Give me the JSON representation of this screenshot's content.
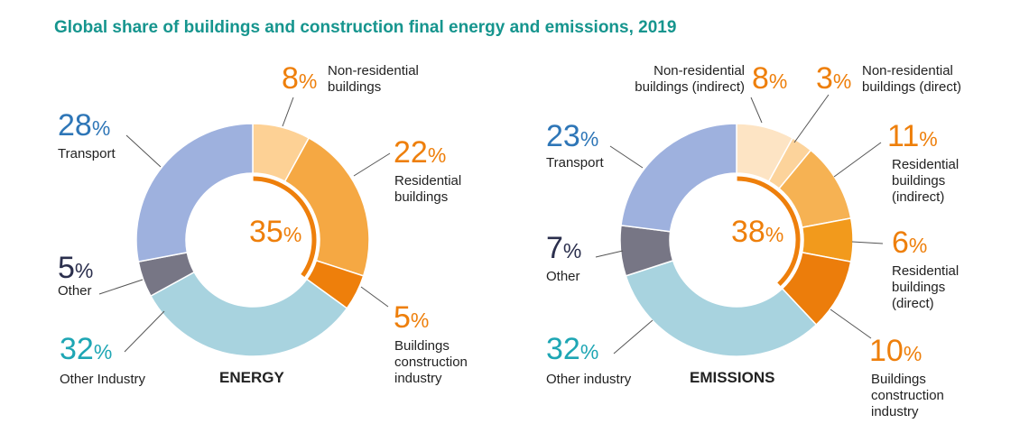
{
  "title": "Global share of buildings and construction final energy and emissions, 2019",
  "chart_data": [
    {
      "type": "pie",
      "name": "ENERGY",
      "center_value": "35",
      "center_unit": "%",
      "slices": [
        {
          "label": "Non-residential buildings",
          "value": 8,
          "color": "#fdd195"
        },
        {
          "label": "Residential buildings",
          "value": 22,
          "color": "#f5a843"
        },
        {
          "label": "Buildings construction industry",
          "value": 5,
          "color": "#ee7f0b"
        },
        {
          "label": "Other Industry",
          "value": 32,
          "color": "#a8d3df"
        },
        {
          "label": "Other",
          "value": 5,
          "color": "#777685"
        },
        {
          "label": "Transport",
          "value": 28,
          "color": "#9eb1de"
        }
      ],
      "labels": {
        "nonres": {
          "num": "8",
          "text1": "Non-residential",
          "text2": "buildings"
        },
        "res": {
          "num": "22",
          "text1": "Residential",
          "text2": "buildings"
        },
        "constr": {
          "num": "5",
          "text1": "Buildings",
          "text2": "construction",
          "text3": "industry"
        },
        "industry": {
          "num": "32",
          "text1": "Other Industry"
        },
        "other": {
          "num": "5",
          "text1": "Other"
        },
        "transport": {
          "num": "28",
          "text1": "Transport"
        }
      }
    },
    {
      "type": "pie",
      "name": "EMISSIONS",
      "center_value": "38",
      "center_unit": "%",
      "slices": [
        {
          "label": "Non-residential buildings (indirect)",
          "value": 8,
          "color": "#fde4c4"
        },
        {
          "label": "Non-residential buildings (direct)",
          "value": 3,
          "color": "#fcd39b"
        },
        {
          "label": "Residential buildings (indirect)",
          "value": 11,
          "color": "#f6b253"
        },
        {
          "label": "Residential buildings (direct)",
          "value": 6,
          "color": "#f29a1c"
        },
        {
          "label": "Buildings construction industry",
          "value": 10,
          "color": "#ec7d0b"
        },
        {
          "label": "Other industry",
          "value": 32,
          "color": "#a8d3df"
        },
        {
          "label": "Other",
          "value": 7,
          "color": "#777685"
        },
        {
          "label": "Transport",
          "value": 23,
          "color": "#9eb1de"
        }
      ],
      "labels": {
        "nonres_ind": {
          "num": "8",
          "text1": "Non-residential",
          "text2": "buildings (indirect)"
        },
        "nonres_dir": {
          "num": "3",
          "text1": "Non-residential",
          "text2": "buildings (direct)"
        },
        "res_ind": {
          "num": "11",
          "text1": "Residential",
          "text2": "buildings",
          "text3": "(indirect)"
        },
        "res_dir": {
          "num": "6",
          "text1": "Residential",
          "text2": "buildings",
          "text3": "(direct)"
        },
        "constr": {
          "num": "10",
          "text1": "Buildings",
          "text2": "construction",
          "text3": "industry"
        },
        "industry": {
          "num": "32",
          "text1": "Other industry"
        },
        "other": {
          "num": "7",
          "text1": "Other"
        },
        "transport": {
          "num": "23",
          "text1": "Transport"
        }
      }
    }
  ],
  "colors": {
    "title": "#16958e",
    "orange": "#ee7f0b",
    "blue": "#2e76b7",
    "teal": "#1ea6b4",
    "dark": "#2b2f4d"
  }
}
